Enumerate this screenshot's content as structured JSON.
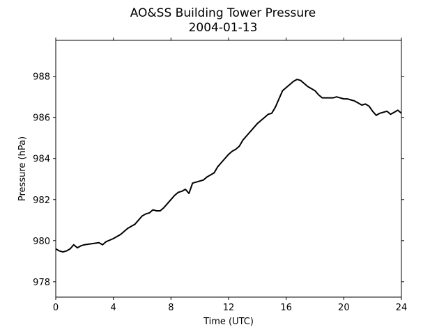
{
  "chart_data": {
    "type": "line",
    "title": "AO&SS Building Tower Pressure",
    "subtitle": "2004-01-13",
    "xlabel": "Time (UTC)",
    "ylabel": "Pressure (hPa)",
    "xlim": [
      0,
      24
    ],
    "ylim": [
      977.25,
      989.75
    ],
    "x_ticks": [
      0,
      4,
      8,
      12,
      16,
      20,
      24
    ],
    "y_ticks": [
      978,
      980,
      982,
      984,
      986,
      988
    ],
    "grid": false,
    "legend": "none",
    "line_color": "#000000",
    "series": [
      {
        "x": [
          0,
          0.25,
          0.5,
          0.75,
          1.0,
          1.25,
          1.5,
          1.75,
          2.0,
          2.5,
          3.0,
          3.25,
          3.5,
          4.0,
          4.25,
          4.5,
          5.0,
          5.5,
          6.0,
          6.25,
          6.5,
          6.75,
          7.0,
          7.25,
          7.5,
          8.0,
          8.25,
          8.5,
          8.75,
          9.0,
          9.25,
          9.5,
          9.75,
          10.0,
          10.25,
          10.5,
          10.75,
          11.0,
          11.25,
          11.5,
          11.75,
          12.0,
          12.25,
          12.5,
          12.75,
          13.0,
          13.25,
          13.5,
          13.75,
          14.0,
          14.25,
          14.5,
          14.75,
          15.0,
          15.25,
          15.5,
          15.75,
          16.0,
          16.25,
          16.5,
          16.75,
          17.0,
          17.25,
          17.5,
          17.75,
          18.0,
          18.25,
          18.5,
          18.75,
          19.0,
          19.25,
          19.5,
          19.75,
          20.0,
          20.25,
          20.5,
          20.75,
          21.0,
          21.25,
          21.5,
          21.75,
          22.0,
          22.25,
          22.5,
          22.75,
          23.0,
          23.25,
          23.5,
          23.75,
          24.0
        ],
        "y": [
          979.6,
          979.5,
          979.45,
          979.5,
          979.6,
          979.8,
          979.65,
          979.75,
          979.8,
          979.85,
          979.9,
          979.8,
          979.95,
          980.1,
          980.2,
          980.3,
          980.6,
          980.8,
          981.2,
          981.3,
          981.35,
          981.5,
          981.45,
          981.45,
          981.6,
          982.0,
          982.2,
          982.35,
          982.4,
          982.5,
          982.3,
          982.8,
          982.85,
          982.9,
          982.95,
          983.1,
          983.2,
          983.3,
          983.6,
          983.8,
          984.0,
          984.2,
          984.35,
          984.45,
          984.6,
          984.9,
          985.1,
          985.3,
          985.5,
          985.7,
          985.85,
          986.0,
          986.15,
          986.2,
          986.5,
          986.9,
          987.3,
          987.45,
          987.6,
          987.75,
          987.85,
          987.8,
          987.65,
          987.5,
          987.4,
          987.3,
          987.1,
          986.95,
          986.95,
          986.95,
          986.95,
          987.0,
          986.95,
          986.9,
          986.9,
          986.85,
          986.8,
          986.7,
          986.6,
          986.65,
          986.55,
          986.3,
          986.1,
          986.2,
          986.25,
          986.3,
          986.15,
          986.25,
          986.35,
          986.2
        ]
      }
    ]
  }
}
